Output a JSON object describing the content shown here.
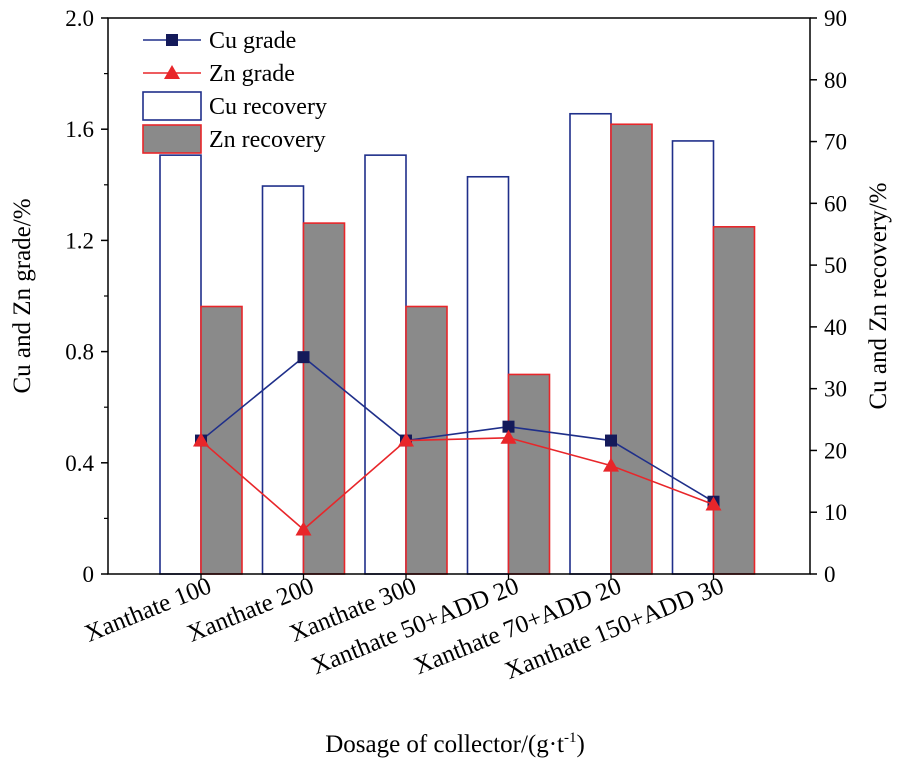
{
  "chart_data": {
    "type": "bar",
    "categories": [
      "Xanthate 100",
      "Xanthate 200",
      "Xanthate 300",
      "Xanthate 50+ADD 20",
      "Xanthate 70+ADD 20",
      "Xanthate 150+ADD 30"
    ],
    "xlabel": "Dosage of collector/(g·t",
    "xlabel_superscript": "-1",
    "xlabel_suffix": ")",
    "ylabel_left": "Cu and Zn grade/%",
    "ylabel_right": "Cu and Zn recovery/%",
    "ylim_left": [
      0,
      2.0
    ],
    "ylim_right": [
      0,
      90
    ],
    "yticks_left": [
      "0",
      "0.4",
      "0.8",
      "1.2",
      "1.6",
      "2.0"
    ],
    "yticks_right": [
      "0",
      "10",
      "20",
      "30",
      "40",
      "50",
      "60",
      "70",
      "80",
      "90"
    ],
    "bar_series": [
      {
        "name": "Cu recovery",
        "axis": "right",
        "values": [
          67.8,
          62.8,
          67.8,
          64.3,
          74.5,
          70.1
        ],
        "fill": "#ffffff",
        "stroke": "#1f2f8a"
      },
      {
        "name": "Zn recovery",
        "axis": "right",
        "values": [
          43.3,
          56.8,
          43.3,
          32.3,
          72.8,
          56.2
        ],
        "fill": "#8a8a8a",
        "stroke": "#e8262a"
      }
    ],
    "line_series": [
      {
        "name": "Cu grade",
        "axis": "left",
        "marker": "square",
        "values": [
          0.48,
          0.78,
          0.48,
          0.53,
          0.48,
          0.26
        ],
        "color": "#1f2f8a",
        "marker_color": "#141a5a"
      },
      {
        "name": "Zn grade",
        "axis": "left",
        "marker": "triangle",
        "values": [
          0.48,
          0.16,
          0.48,
          0.49,
          0.39,
          0.25
        ],
        "color": "#e8262a",
        "marker_color": "#e8262a"
      }
    ],
    "legend_position": "top-left",
    "grid": false
  }
}
